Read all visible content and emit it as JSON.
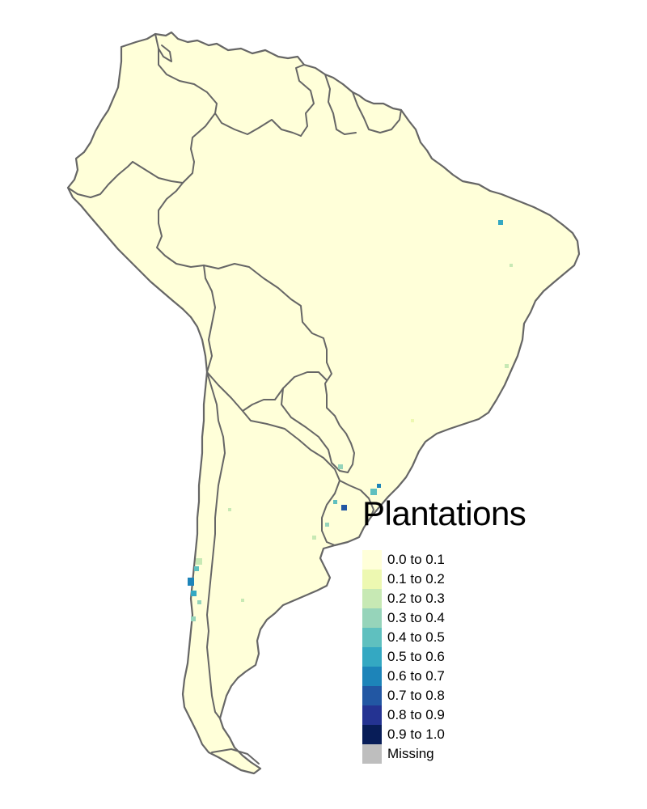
{
  "legend": {
    "title": "Plantations",
    "items": [
      {
        "label": "0.0 to 0.1",
        "color": "#FFFFD9"
      },
      {
        "label": "0.1 to 0.2",
        "color": "#EDF8B1"
      },
      {
        "label": "0.2 to 0.3",
        "color": "#C7E9B4"
      },
      {
        "label": "0.3 to 0.4",
        "color": "#96D4BA"
      },
      {
        "label": "0.4 to 0.5",
        "color": "#5FC0BF"
      },
      {
        "label": "0.5 to 0.6",
        "color": "#34A8C2"
      },
      {
        "label": "0.6 to 0.7",
        "color": "#1D84B9"
      },
      {
        "label": "0.7 to 0.8",
        "color": "#2257A3"
      },
      {
        "label": "0.8 to 0.9",
        "color": "#243392"
      },
      {
        "label": "0.9 to 1.0",
        "color": "#081D58"
      },
      {
        "label": "Missing",
        "color": "#BEBEBE"
      }
    ]
  },
  "map": {
    "land_color": "#FFFFD9",
    "border_color": "#666666"
  }
}
